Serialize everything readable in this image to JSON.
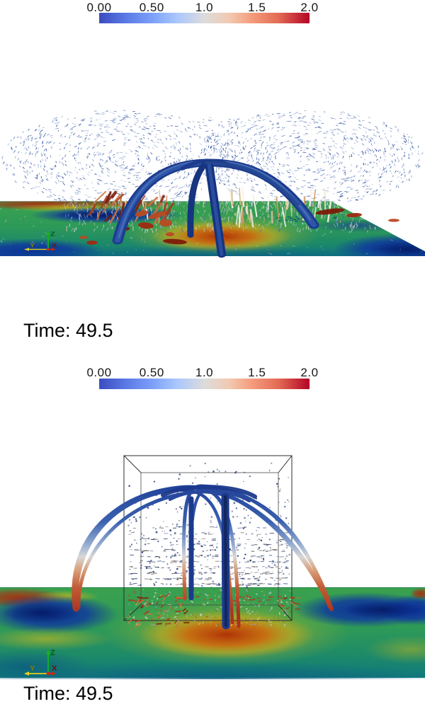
{
  "colorbar": {
    "ticks": [
      "0.00",
      "0.50",
      "1.0",
      "1.5",
      "2.0"
    ],
    "range": [
      0,
      2
    ],
    "colormap": "cool-to-warm",
    "gradient": [
      "#3b4cc0 0%",
      "#5977e3 12%",
      "#7b9ff9 25%",
      "#aac7fd 37%",
      "#dcdcdc 50%",
      "#f2c9b0 62%",
      "#f49a7b 73%",
      "#e36c55 85%",
      "#b40426 100%"
    ]
  },
  "panels": {
    "top": {
      "time_label": "Time: 49.5"
    },
    "bottom": {
      "time_label": "Time: 49.5"
    }
  },
  "axis_widget": {
    "x": "X",
    "y": "Y",
    "z": "Z"
  },
  "palette": {
    "navy": "#1b3a8c",
    "navy_dark": "#12265e",
    "arch_blue": "#2d55a8",
    "box_line": "#2e2e2e",
    "spray": [
      "#2c4fa3",
      "#41629f",
      "#5c7fc2",
      "#8ba6d6",
      "#1e3f96"
    ],
    "surface_glyphs": [
      "#c7d2ea",
      "#9fb3d8",
      "#4a66a8",
      "#e8e4da",
      "#d9bb90"
    ],
    "light_arrows": [
      "#efe6d2",
      "#d9bb90",
      "#f7f3ea",
      "#cf9a60"
    ],
    "iso_red": [
      "#b03018",
      "#7e1a0a",
      "#d8703a",
      "#c9713f",
      "#a53c1d"
    ],
    "speckle": [
      "#dfe8da",
      "#b8482a",
      "#3f8a4a",
      "#cfd3ea",
      "#98aacd",
      "#c8b24a"
    ],
    "axis": {
      "x": "#d42314",
      "y": "#e3cf1b",
      "z": "#12b41e"
    },
    "axis_text": {
      "x": "#6b1505",
      "y": "#8a7a00",
      "z": "#0b5a0b"
    }
  },
  "chart_data": [
    {
      "type": "heatmap",
      "title": "3D MHD simulation snapshot (side view): dark-blue field-line arch, vector-glyph spray lobes, red isosurface fragments over rainbow-mapped surface slice",
      "colorbar": {
        "tick_values": [
          0.0,
          0.5,
          1.0,
          1.5,
          2.0
        ],
        "range": [
          0,
          2
        ],
        "colormap": "cool-to-warm (blue-white-red)",
        "position": "top"
      },
      "annotations": [
        "Time: 49.5"
      ],
      "legend": "orientation axes X (red), Y (yellow), Z (green) at lower left",
      "scene": [
        "blue field-line arch with central down-flow column",
        "two fountain-shaped sprays of small blue vector glyphs",
        "red/brown isosurface chunks near surface",
        "rainbow (blue-green-orange-red) surface plane with blue ovals and central orange hotspot"
      ]
    },
    {
      "type": "heatmap",
      "title": "3D MHD simulation snapshot: field-line arch inside wireframe domain box; arch colored blue at apex to red at footpoints",
      "colorbar": {
        "tick_values": [
          0.0,
          0.5,
          1.0,
          1.5,
          2.0
        ],
        "range": [
          0,
          2
        ],
        "colormap": "cool-to-warm (blue-white-red)",
        "position": "top"
      },
      "annotations": [
        "Time: 49.5"
      ],
      "legend": "orientation axes X (red), Y (yellow), Z (green) at lower left",
      "scene": [
        "black wireframe box of vector glyph dots",
        "wide arch of stream tubes: dark blue top, white mid, red footpoints rooted in dark blue surface ovals",
        "central dark blue descending tube bundle",
        "rainbow surface plane with central orange hotspot and blue bands"
      ]
    }
  ]
}
